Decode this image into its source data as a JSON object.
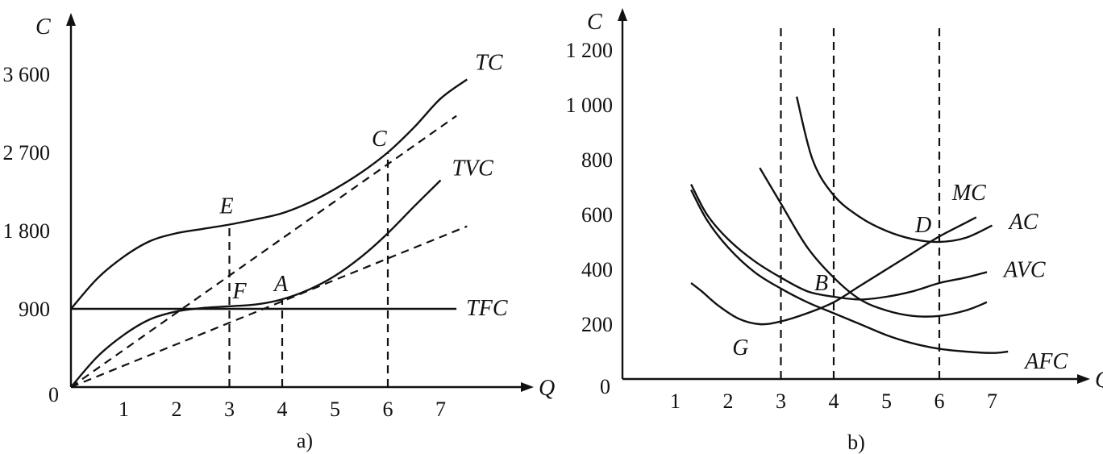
{
  "chart_data": [
    {
      "type": "line",
      "caption": "a)",
      "xlabel": "Q",
      "ylabel": "C",
      "origin_label": "0",
      "xticks": [
        "1",
        "2",
        "3",
        "4",
        "5",
        "6",
        "7"
      ],
      "yticks": [
        {
          "value": 900,
          "label": "900"
        },
        {
          "value": 1800,
          "label": "1 800"
        },
        {
          "value": 2700,
          "label": "2 700"
        },
        {
          "value": 3600,
          "label": "3 600"
        }
      ],
      "xlim": [
        0,
        7.7
      ],
      "ylim": [
        0,
        4300
      ],
      "series": [
        {
          "name": "TC",
          "style": "solid",
          "points": [
            [
              0,
              900
            ],
            [
              0.5,
              1250
            ],
            [
              1,
              1500
            ],
            [
              1.5,
              1680
            ],
            [
              2,
              1770
            ],
            [
              2.5,
              1820
            ],
            [
              3,
              1870
            ],
            [
              3.5,
              1930
            ],
            [
              4,
              2000
            ],
            [
              4.5,
              2120
            ],
            [
              5,
              2280
            ],
            [
              5.5,
              2470
            ],
            [
              6,
              2700
            ],
            [
              6.5,
              2990
            ],
            [
              7,
              3320
            ],
            [
              7.5,
              3540
            ]
          ]
        },
        {
          "name": "TVC",
          "style": "solid",
          "points": [
            [
              0,
              0
            ],
            [
              0.5,
              350
            ],
            [
              1,
              600
            ],
            [
              1.5,
              780
            ],
            [
              2,
              870
            ],
            [
              2.5,
              910
            ],
            [
              3,
              930
            ],
            [
              3.5,
              950
            ],
            [
              4,
              1010
            ],
            [
              4.5,
              1120
            ],
            [
              5,
              1280
            ],
            [
              5.5,
              1500
            ],
            [
              6,
              1770
            ],
            [
              6.5,
              2080
            ],
            [
              7,
              2380
            ]
          ]
        },
        {
          "name": "TFC",
          "style": "solid",
          "points": [
            [
              0,
              900
            ],
            [
              7.3,
              900
            ]
          ]
        },
        {
          "name": "",
          "style": "dashed",
          "points": [
            [
              0,
              0
            ],
            [
              7.3,
              3120
            ]
          ]
        },
        {
          "name": "",
          "style": "dashed",
          "points": [
            [
              0,
              0
            ],
            [
              7.5,
              1850
            ]
          ]
        }
      ],
      "points": [
        {
          "label": "E",
          "x": 3,
          "y": 1870
        },
        {
          "label": "F",
          "x": 3,
          "y": 930
        },
        {
          "label": "A",
          "x": 4,
          "y": 1010
        },
        {
          "label": "C",
          "x": 6,
          "y": 2700
        }
      ],
      "guides": [
        {
          "x": 3,
          "y_top": 1870
        },
        {
          "x": 4,
          "y_top": 1010
        },
        {
          "x": 6,
          "y_top": 2700
        }
      ]
    },
    {
      "type": "line",
      "caption": "b)",
      "xlabel": "Q",
      "ylabel": "C",
      "origin_label": "0",
      "xticks": [
        "1",
        "2",
        "3",
        "4",
        "5",
        "6",
        "7"
      ],
      "yticks": [
        {
          "value": 200,
          "label": "200"
        },
        {
          "value": 400,
          "label": "400"
        },
        {
          "value": 600,
          "label": "600"
        },
        {
          "value": 800,
          "label": "800"
        },
        {
          "value": 1000,
          "label": "1 000"
        },
        {
          "value": 1200,
          "label": "1 200"
        }
      ],
      "xlim": [
        0,
        7.7
      ],
      "ylim": [
        0,
        1400
      ],
      "series": [
        {
          "name": "MC",
          "style": "solid",
          "points": [
            [
              1.3,
              350
            ],
            [
              1.5,
              320
            ],
            [
              1.8,
              270
            ],
            [
              2.2,
              220
            ],
            [
              2.6,
              200
            ],
            [
              3,
              210
            ],
            [
              3.5,
              240
            ],
            [
              4,
              280
            ],
            [
              4.5,
              340
            ],
            [
              5,
              400
            ],
            [
              5.5,
              460
            ],
            [
              6,
              520
            ],
            [
              6.5,
              570
            ],
            [
              6.7,
              590
            ]
          ]
        },
        {
          "name": "AVC",
          "style": "solid",
          "points": [
            [
              1.3,
              710
            ],
            [
              1.6,
              600
            ],
            [
              2,
              510
            ],
            [
              2.5,
              430
            ],
            [
              3,
              370
            ],
            [
              3.5,
              320
            ],
            [
              4,
              300
            ],
            [
              4.5,
              290
            ],
            [
              5,
              300
            ],
            [
              5.5,
              320
            ],
            [
              6,
              350
            ],
            [
              6.5,
              370
            ],
            [
              6.9,
              390
            ]
          ]
        },
        {
          "name": "AFC",
          "style": "solid",
          "points": [
            [
              1.3,
              690
            ],
            [
              1.6,
              580
            ],
            [
              2,
              480
            ],
            [
              2.5,
              390
            ],
            [
              3,
              330
            ],
            [
              3.5,
              280
            ],
            [
              4,
              240
            ],
            [
              4.5,
              200
            ],
            [
              5,
              160
            ],
            [
              5.5,
              130
            ],
            [
              6,
              110
            ],
            [
              6.5,
              100
            ],
            [
              7,
              95
            ],
            [
              7.3,
              100
            ]
          ]
        },
        {
          "name": "AC",
          "style": "solid",
          "points": [
            [
              2.6,
              770
            ],
            [
              3,
              640
            ],
            [
              3.5,
              480
            ],
            [
              4,
              370
            ],
            [
              4.5,
              290
            ],
            [
              5,
              250
            ],
            [
              5.5,
              230
            ],
            [
              6,
              230
            ],
            [
              6.5,
              250
            ],
            [
              6.9,
              280
            ]
          ]
        },
        {
          "name": "",
          "style": "solid",
          "points": [
            [
              3.3,
              1030
            ],
            [
              3.6,
              800
            ],
            [
              4,
              670
            ],
            [
              4.5,
              590
            ],
            [
              5,
              540
            ],
            [
              5.5,
              510
            ],
            [
              6,
              500
            ],
            [
              6.5,
              515
            ],
            [
              7,
              560
            ]
          ]
        }
      ],
      "points": [
        {
          "label": "MC",
          "x": 6.7,
          "y": 600
        },
        {
          "label": "AC",
          "x": 7.2,
          "y": 570
        },
        {
          "label": "AVC",
          "x": 7.1,
          "y": 390
        },
        {
          "label": "AFC",
          "x": 7.5,
          "y": 80
        },
        {
          "label": "D",
          "x": 6,
          "y": 500
        },
        {
          "label": "B",
          "x": 4,
          "y": 300
        },
        {
          "label": "G",
          "x": 2.6,
          "y": 200
        }
      ],
      "guides": [
        {
          "x": 3,
          "y_top": 1300
        },
        {
          "x": 4,
          "y_top": 1300
        },
        {
          "x": 6,
          "y_top": 1300
        }
      ]
    }
  ]
}
